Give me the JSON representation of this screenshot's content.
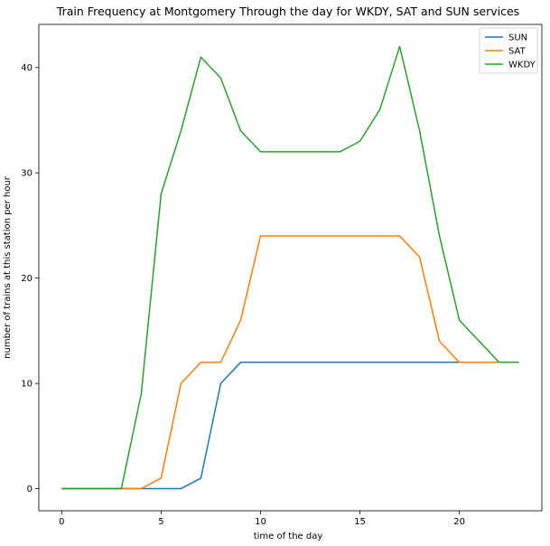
{
  "chart_data": {
    "type": "line",
    "title": "Train Frequency at Montgomery Through the day for WKDY, SAT and SUN services",
    "xlabel": "time of the day",
    "ylabel": "number of trains at this station per hour",
    "xlim": [
      -1.15,
      24.15
    ],
    "ylim": [
      -2.1,
      44.1
    ],
    "xticks": [
      0,
      5,
      10,
      15,
      20
    ],
    "yticks": [
      0,
      10,
      20,
      30,
      40
    ],
    "x": [
      0,
      1,
      2,
      3,
      4,
      5,
      6,
      7,
      8,
      9,
      10,
      11,
      12,
      13,
      14,
      15,
      16,
      17,
      18,
      19,
      20,
      21,
      22,
      23
    ],
    "legend_location": "top-right",
    "series": [
      {
        "name": "SUN",
        "color": "#1f77b4",
        "values": [
          0,
          0,
          0,
          0,
          0,
          0,
          0,
          1,
          10,
          12,
          12,
          12,
          12,
          12,
          12,
          12,
          12,
          12,
          12,
          12,
          12,
          12,
          12,
          12
        ]
      },
      {
        "name": "SAT",
        "color": "#ff7f0e",
        "values": [
          0,
          0,
          0,
          0,
          0,
          1,
          10,
          12,
          12,
          16,
          24,
          24,
          24,
          24,
          24,
          24,
          24,
          24,
          22,
          14,
          12,
          12,
          12,
          12
        ]
      },
      {
        "name": "WKDY",
        "color": "#2ca02c",
        "values": [
          0,
          0,
          0,
          0,
          9,
          28,
          34,
          41,
          39,
          34,
          32,
          32,
          32,
          32,
          32,
          33,
          36,
          42,
          34,
          24,
          16,
          14,
          12,
          12
        ]
      }
    ]
  }
}
